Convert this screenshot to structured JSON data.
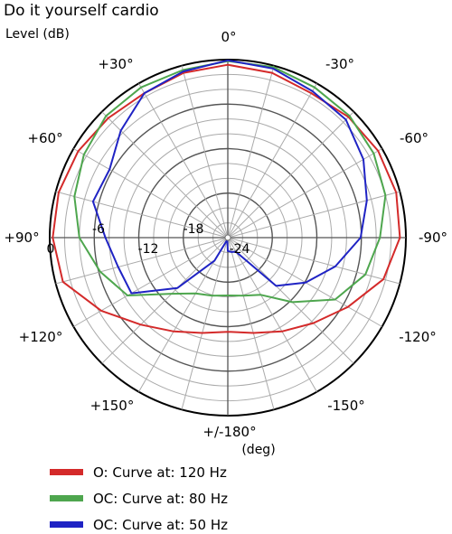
{
  "chart_data": {
    "type": "polar-line",
    "title": "Do it yourself cardio",
    "ylabel": "Level (dB)",
    "angle_unit": "(deg)",
    "angle_labels": [
      "0°",
      "+30°",
      "-30°",
      "+60°",
      "-60°",
      "+90°",
      "-90°",
      "+120°",
      "-120°",
      "+150°",
      "-150°",
      "+/-180°"
    ],
    "radial_labels": [
      "0",
      "-6",
      "-12",
      "-18",
      "-24"
    ],
    "r_range_db": [
      -24,
      0
    ],
    "angular_grid_step_deg": 15,
    "radial_grid_step_db": 2,
    "series": [
      {
        "name": "O: Curve at: 120 Hz",
        "color": "#d42a2a",
        "theta": [
          0,
          15,
          30,
          45,
          60,
          75,
          90,
          105,
          120,
          135,
          150,
          165,
          180,
          195,
          210,
          225,
          240,
          255,
          270,
          285,
          300,
          315,
          330,
          345
        ],
        "db": [
          -0.7,
          -1.0,
          -1.5,
          -1.2,
          -0.7,
          -0.4,
          -0.4,
          -1.0,
          -4.3,
          -7.4,
          -9.4,
          -10.7,
          -11.3,
          -10.7,
          -9.4,
          -7.7,
          -5.3,
          -2.3,
          -0.8,
          -0.5,
          -0.6,
          -1.0,
          -1.5,
          -1.0
        ]
      },
      {
        "name": "OC: Curve at: 80 Hz",
        "color": "#4ea64e",
        "theta": [
          0,
          15,
          30,
          45,
          60,
          75,
          90,
          105,
          120,
          135,
          150,
          165,
          180,
          195,
          210,
          225,
          240,
          255,
          270,
          285,
          300,
          315,
          330,
          345
        ],
        "db": [
          -0.2,
          -0.6,
          -0.6,
          -0.8,
          -1.6,
          -2.6,
          -4.0,
          -6.2,
          -8.4,
          -13.3,
          -15.3,
          -15.9,
          -16.2,
          -15.9,
          -15.1,
          -11.7,
          -7.3,
          -4.8,
          -3.5,
          -2.0,
          -1.3,
          -0.8,
          -0.6,
          -0.2
        ]
      },
      {
        "name": "OC: Curve at: 50 Hz",
        "color": "#1f23c4",
        "theta": [
          0,
          15,
          30,
          45,
          60,
          75,
          90,
          105,
          120,
          135,
          150,
          165,
          180,
          195,
          210,
          225,
          240,
          255,
          270,
          285,
          300,
          315,
          330,
          345
        ],
        "db": [
          -0.1,
          -0.8,
          -1.5,
          -3.6,
          -5.6,
          -5.2,
          -7.5,
          -8.7,
          -9.0,
          -14.4,
          -20.4,
          -23.7,
          -22.2,
          -22.0,
          -21.8,
          -14.8,
          -11.9,
          -9.0,
          -6.1,
          -4.6,
          -2.9,
          -1.5,
          -1.2,
          -0.4
        ]
      }
    ],
    "legend_position": "bottom"
  }
}
